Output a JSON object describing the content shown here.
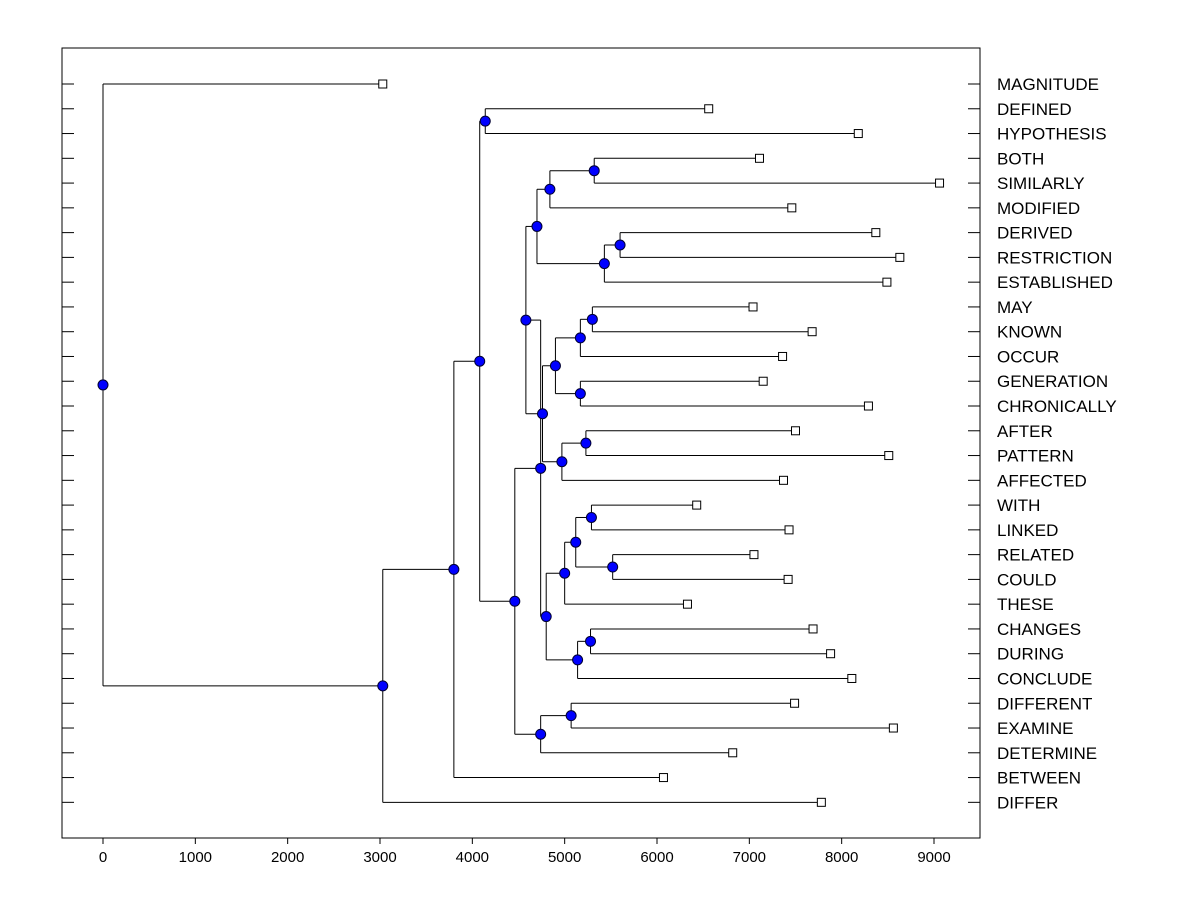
{
  "chart_data": {
    "type": "dendrogram",
    "orientation": "horizontal",
    "xlim": [
      -450,
      9500
    ],
    "xticks": [
      0,
      1000,
      2000,
      3000,
      4000,
      5000,
      6000,
      7000,
      8000,
      9000
    ],
    "leaves": [
      {
        "label": "MAGNITUDE",
        "value": 3030
      },
      {
        "label": "DEFINED",
        "value": 6560
      },
      {
        "label": "HYPOTHESIS",
        "value": 8180
      },
      {
        "label": "BOTH",
        "value": 7110
      },
      {
        "label": "SIMILARLY",
        "value": 9060
      },
      {
        "label": "MODIFIED",
        "value": 7460
      },
      {
        "label": "DERIVED",
        "value": 8370
      },
      {
        "label": "RESTRICTION",
        "value": 8630
      },
      {
        "label": "ESTABLISHED",
        "value": 8490
      },
      {
        "label": "MAY",
        "value": 7040
      },
      {
        "label": "KNOWN",
        "value": 7680
      },
      {
        "label": "OCCUR",
        "value": 7360
      },
      {
        "label": "GENERATION",
        "value": 7150
      },
      {
        "label": "CHRONICALLY",
        "value": 8290
      },
      {
        "label": "AFTER",
        "value": 7500
      },
      {
        "label": "PATTERN",
        "value": 8510
      },
      {
        "label": "AFFECTED",
        "value": 7370
      },
      {
        "label": "WITH",
        "value": 6430
      },
      {
        "label": "LINKED",
        "value": 7430
      },
      {
        "label": "RELATED",
        "value": 7050
      },
      {
        "label": "COULD",
        "value": 7420
      },
      {
        "label": "THESE",
        "value": 6330
      },
      {
        "label": "CHANGES",
        "value": 7690
      },
      {
        "label": "DURING",
        "value": 7880
      },
      {
        "label": "CONCLUDE",
        "value": 8110
      },
      {
        "label": "DIFFERENT",
        "value": 7490
      },
      {
        "label": "EXAMINE",
        "value": 8560
      },
      {
        "label": "DETERMINE",
        "value": 6820
      },
      {
        "label": "BETWEEN",
        "value": 6070
      },
      {
        "label": "DIFFER",
        "value": 7780
      }
    ],
    "merges": [
      {
        "id": "n1",
        "height": 4140,
        "children": [
          "L1",
          "L2"
        ]
      },
      {
        "id": "n2",
        "height": 5320,
        "children": [
          "L3",
          "L4"
        ]
      },
      {
        "id": "n3",
        "height": 4840,
        "children": [
          "n2",
          "L5"
        ]
      },
      {
        "id": "n4",
        "height": 5600,
        "children": [
          "L6",
          "L7"
        ]
      },
      {
        "id": "n5",
        "height": 5430,
        "children": [
          "n4",
          "L8"
        ]
      },
      {
        "id": "n6",
        "height": 4700,
        "children": [
          "n3",
          "n5"
        ]
      },
      {
        "id": "n7",
        "height": 5300,
        "children": [
          "L9",
          "L10"
        ]
      },
      {
        "id": "n8",
        "height": 5170,
        "children": [
          "n7",
          "L11"
        ]
      },
      {
        "id": "n9",
        "height": 5170,
        "children": [
          "L12",
          "L13"
        ]
      },
      {
        "id": "n10",
        "height": 4900,
        "children": [
          "n8",
          "n9"
        ]
      },
      {
        "id": "n11",
        "height": 5230,
        "children": [
          "L14",
          "L15"
        ]
      },
      {
        "id": "n12",
        "height": 4970,
        "children": [
          "n11",
          "L16"
        ]
      },
      {
        "id": "n13",
        "height": 4760,
        "children": [
          "n10",
          "n12"
        ]
      },
      {
        "id": "n14",
        "height": 4580,
        "children": [
          "n6",
          "n13"
        ]
      },
      {
        "id": "n15",
        "height": 5290,
        "children": [
          "L17",
          "L18"
        ]
      },
      {
        "id": "n16",
        "height": 5520,
        "children": [
          "L19",
          "L20"
        ]
      },
      {
        "id": "n17",
        "height": 5120,
        "children": [
          "n15",
          "n16"
        ]
      },
      {
        "id": "n18",
        "height": 5000,
        "children": [
          "n17",
          "L21"
        ]
      },
      {
        "id": "n19",
        "height": 5280,
        "children": [
          "L22",
          "L23"
        ]
      },
      {
        "id": "n20",
        "height": 5140,
        "children": [
          "n19",
          "L24"
        ]
      },
      {
        "id": "n21",
        "height": 4800,
        "children": [
          "n18",
          "n20"
        ]
      },
      {
        "id": "n22",
        "height": 4740,
        "children": [
          "n14",
          "n21"
        ]
      },
      {
        "id": "n23",
        "height": 5070,
        "children": [
          "L25",
          "L26"
        ]
      },
      {
        "id": "n24",
        "height": 4740,
        "children": [
          "n23",
          "L27"
        ]
      },
      {
        "id": "n25",
        "height": 4460,
        "children": [
          "n22",
          "n24"
        ]
      },
      {
        "id": "n26",
        "height": 4080,
        "children": [
          "n1",
          "n25"
        ]
      },
      {
        "id": "n27",
        "height": 3800,
        "children": [
          "n26",
          "L28"
        ]
      },
      {
        "id": "n28",
        "height": 3030,
        "children": [
          "n27",
          "L29"
        ]
      },
      {
        "id": "n29",
        "height": 0,
        "children": [
          "L0",
          "n28"
        ]
      }
    ],
    "colors": {
      "node_fill": "#0000ff",
      "node_stroke": "#000033",
      "line": "#000000",
      "leaf_fill": "#ffffff",
      "frame": "#000000"
    }
  }
}
